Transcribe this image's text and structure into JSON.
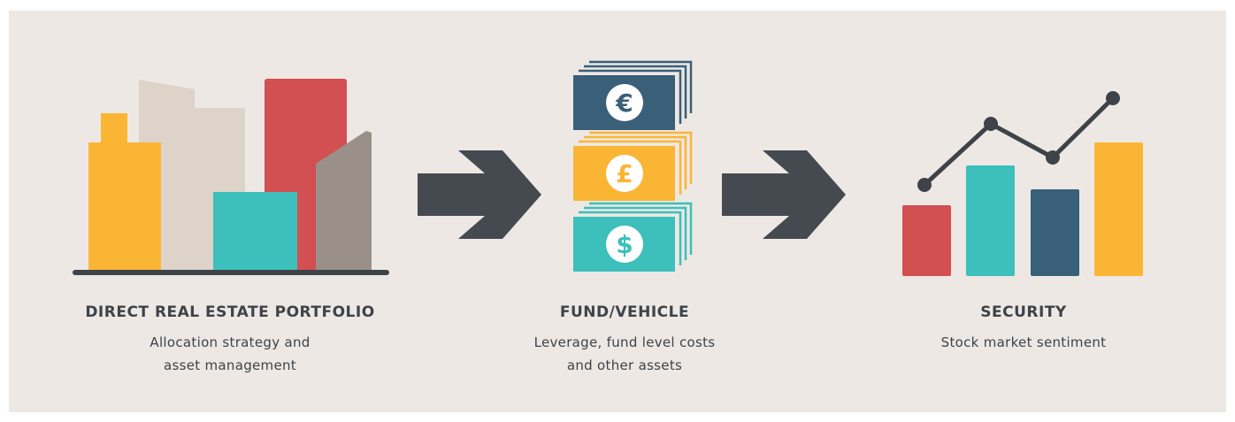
{
  "stages": [
    {
      "title": "DIRECT REAL ESTATE PORTFOLIO",
      "description": [
        "Allocation strategy and",
        "asset management"
      ]
    },
    {
      "title": "FUND/VEHICLE",
      "description": [
        "Leverage, fund level costs",
        "and other assets"
      ],
      "currency_symbols": [
        "€",
        "£",
        "$"
      ]
    },
    {
      "title": "SECURITY",
      "description": [
        "Stock market sentiment"
      ]
    }
  ]
}
